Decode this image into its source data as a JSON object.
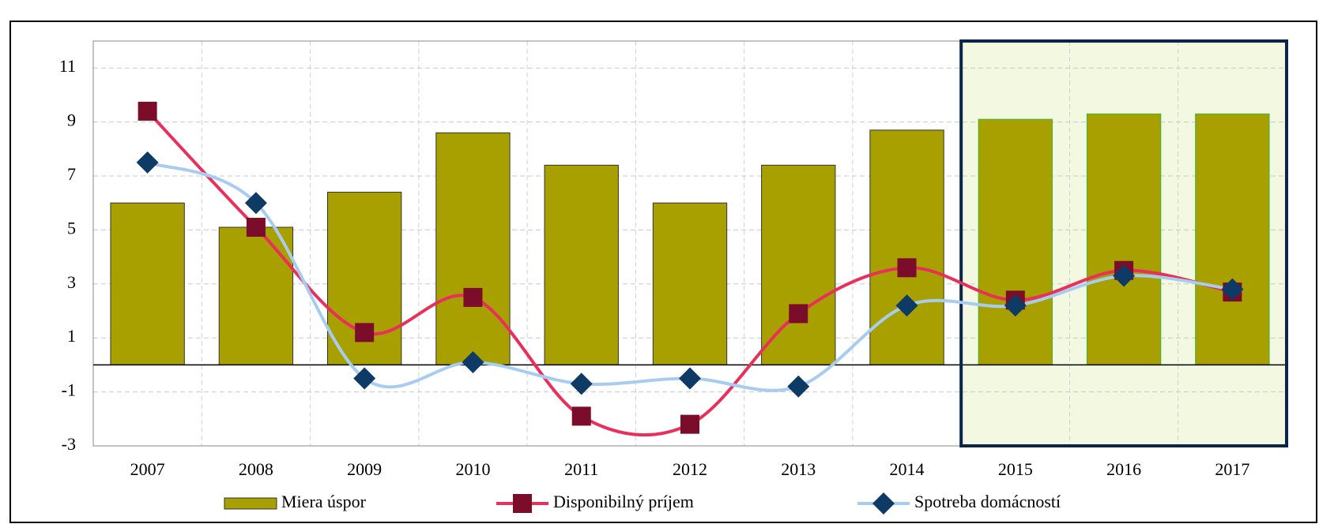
{
  "chart_data": {
    "type": "bar-line",
    "categories": [
      "2007",
      "2008",
      "2009",
      "2010",
      "2011",
      "2012",
      "2013",
      "2014",
      "2015",
      "2016",
      "2017"
    ],
    "series": [
      {
        "name": "Miera úspor",
        "kind": "bar",
        "color": "#a8a000",
        "values": [
          6.0,
          5.1,
          6.4,
          8.6,
          7.4,
          6.0,
          7.4,
          8.7,
          9.1,
          9.3,
          9.3
        ]
      },
      {
        "name": "Disponibilný príjem",
        "kind": "line",
        "color": "#e8305a",
        "marker_color": "#7b0c2a",
        "marker": "square",
        "values": [
          9.4,
          5.1,
          1.2,
          2.5,
          -1.9,
          -2.2,
          1.9,
          3.6,
          2.4,
          3.5,
          2.7
        ]
      },
      {
        "name": "Spotreba domácností",
        "kind": "line",
        "color": "#a8ccf0",
        "marker_color": "#0e3a66",
        "marker": "diamond",
        "values": [
          7.5,
          6.0,
          -0.5,
          0.1,
          -0.7,
          -0.5,
          -0.8,
          2.2,
          2.2,
          3.3,
          2.8
        ]
      }
    ],
    "ylim": [
      -3,
      12
    ],
    "yticks": [
      -3,
      -1,
      1,
      3,
      5,
      7,
      9,
      11
    ],
    "grid": true,
    "legend": "bottom"
  }
}
